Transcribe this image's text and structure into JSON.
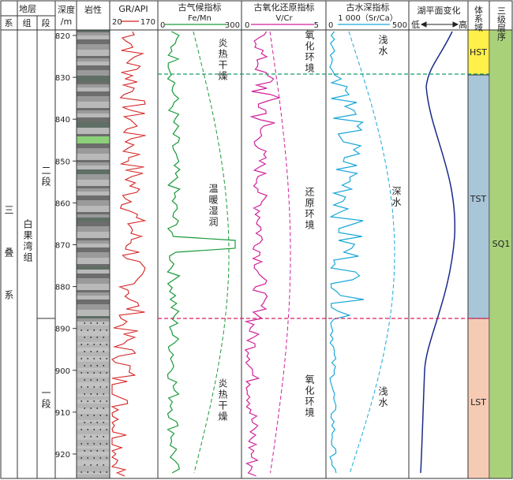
{
  "header": {
    "strata_group": "地层",
    "system": "系",
    "formation_col": "组",
    "member_col": "段",
    "depth": "深度",
    "depth_unit": "/m",
    "lithology": "岩性",
    "gr_title": "GR/API",
    "gr_min": "20",
    "gr_max": "170",
    "paleo_climate": "古气候指标",
    "fe_mn": "Fe/Mn",
    "fe_min": "0",
    "fe_max": "300",
    "paleo_redox": "古氧化还原指标",
    "v_cr": "V/Cr",
    "v_min": "0",
    "v_max": "5",
    "paleo_depth": "古水深指标",
    "sr_ca": "1 000（Sr/Ca）",
    "sr_min": "0",
    "sr_max": "500",
    "lake_level": "湖平面变化",
    "low": "低",
    "high": "高",
    "systems_tract": "体系域",
    "third_order": "三级层序"
  },
  "strata": {
    "system_name": "三叠系",
    "formation_name": "白果湾组",
    "member_upper": "二段",
    "member_lower": "一段"
  },
  "depth_ticks": [
    "820",
    "830",
    "840",
    "850",
    "860",
    "870",
    "880",
    "890",
    "900",
    "910",
    "920"
  ],
  "interpretations": {
    "climate_top": "炎热干燥",
    "climate_mid": "温暖湿润",
    "climate_bottom": "炎热干燥",
    "redox_top": "氧化环境",
    "redox_mid": "还原环境",
    "redox_bottom": "氧化环境",
    "depth_top": "浅水",
    "depth_mid": "深水",
    "depth_bottom": "浅水"
  },
  "tracts": [
    "HST",
    "TST",
    "LST"
  ],
  "sequence": "SQ1",
  "colors": {
    "gr": "#d42020",
    "fe": "#1a9a3a",
    "v": "#d0209a",
    "sr": "#1aa8d8",
    "lake": "#1a2a8a",
    "hst": "#fff04a",
    "tst": "#a9c5d8",
    "lst": "#f6cbb4",
    "sq": "#a9d17a",
    "boundary_upper": "#1a9a6a",
    "boundary_lower": "#d42060"
  }
}
